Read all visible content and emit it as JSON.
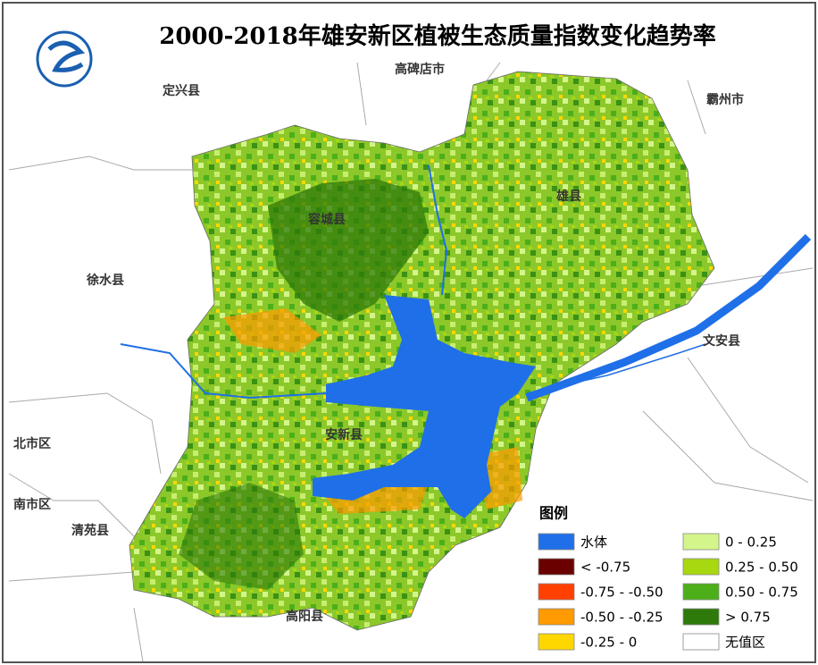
{
  "title": "2000-2018年雄安新区植被生态质量指数变化趋势率",
  "places": [
    "高碑店市",
    "定兴县",
    "霸州市",
    "雄县",
    "容城县",
    "徐水县",
    "文安县",
    "安新县",
    "北市区",
    "南市区",
    "清苑县",
    "高阳县"
  ],
  "legend": {
    "title": "图例",
    "items": [
      {
        "label": "水体",
        "color": "#1f6fe8"
      },
      {
        "label": "< -0.75",
        "color": "#6b0000"
      },
      {
        "label": "-0.75 - -0.50",
        "color": "#ff4000"
      },
      {
        "label": "-0.50 - -0.25",
        "color": "#ff9a00"
      },
      {
        "label": "-0.25 - 0",
        "color": "#ffd700"
      },
      {
        "label": "0 - 0.25",
        "color": "#d4f58a"
      },
      {
        "label": "0.25 - 0.50",
        "color": "#a8d810"
      },
      {
        "label": "0.50 - 0.75",
        "color": "#4caf1a"
      },
      {
        "label": "> 0.75",
        "color": "#2d7a0a"
      },
      {
        "label": "无值区",
        "color": "#ffffff"
      }
    ]
  }
}
